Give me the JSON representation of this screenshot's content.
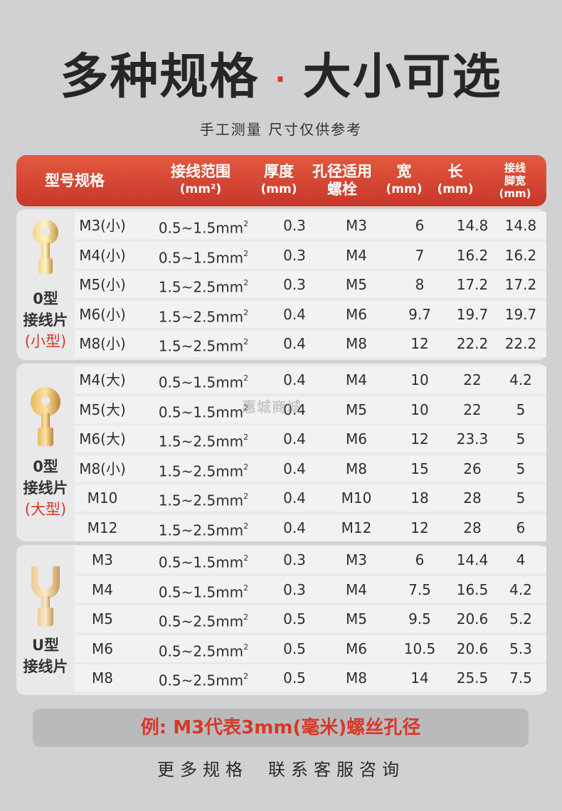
{
  "title": {
    "left": "多种规格",
    "dot": "·",
    "right": "大小可选"
  },
  "subtitle": "手工测量  尺寸仅供参考",
  "header": [
    {
      "l1": "型号规格",
      "l2": ""
    },
    {
      "l1": "接线范围",
      "l2": "(mm²)"
    },
    {
      "l1": "厚度",
      "l2": "(mm)"
    },
    {
      "l1": "孔径适用",
      "l2": "螺栓"
    },
    {
      "l1": "宽",
      "l2": "(mm)"
    },
    {
      "l1": "长",
      "l2": "(mm)"
    },
    {
      "l1": "接线",
      "l2": "脚宽",
      "l3": "(mm)"
    }
  ],
  "groups": [
    {
      "name": "O型\n接线片",
      "name1": "0型",
      "name2": "接线片",
      "sub": "(小型)",
      "icon": "ring-terminal-small-icon",
      "rows": [
        [
          "M3(小)",
          "0.5~1.5mm",
          "0.3",
          "M3",
          "6",
          "14.8",
          "14.8"
        ],
        [
          "M4(小)",
          "0.5~1.5mm",
          "0.3",
          "M4",
          "7",
          "16.2",
          "16.2"
        ],
        [
          "M5(小)",
          "1.5~2.5mm",
          "0.3",
          "M5",
          "8",
          "17.2",
          "17.2"
        ],
        [
          "M6(小)",
          "1.5~2.5mm",
          "0.4",
          "M6",
          "9.7",
          "19.7",
          "19.7"
        ],
        [
          "M8(小)",
          "1.5~2.5mm",
          "0.4",
          "M8",
          "12",
          "22.2",
          "22.2"
        ]
      ]
    },
    {
      "name1": "0型",
      "name2": "接线片",
      "sub": "(大型)",
      "icon": "ring-terminal-large-icon",
      "rows": [
        [
          "M4(大)",
          "0.5~1.5mm",
          "0.4",
          "M4",
          "10",
          "22",
          "4.2"
        ],
        [
          "M5(大)",
          "0.5~1.5mm",
          "0.4",
          "M5",
          "10",
          "22",
          "5"
        ],
        [
          "M6(大)",
          "1.5~2.5mm",
          "0.4",
          "M6",
          "12",
          "23.3",
          "5"
        ],
        [
          "M8(小)",
          "1.5~2.5mm",
          "0.4",
          "M8",
          "15",
          "26",
          "5"
        ],
        [
          "M10",
          "1.5~2.5mm",
          "0.4",
          "M10",
          "18",
          "28",
          "5"
        ],
        [
          "M12",
          "1.5~2.5mm",
          "0.4",
          "M12",
          "12",
          "28",
          "6"
        ]
      ]
    },
    {
      "name1": "U型",
      "name2": "接线片",
      "sub": "",
      "icon": "fork-terminal-icon",
      "rows": [
        [
          "M3",
          "0.5~1.5mm",
          "0.3",
          "M3",
          "6",
          "14.4",
          "4"
        ],
        [
          "M4",
          "0.5~1.5mm",
          "0.3",
          "M4",
          "7.5",
          "16.5",
          "4.2"
        ],
        [
          "M5",
          "0.5~2.5mm",
          "0.5",
          "M5",
          "9.5",
          "20.6",
          "5.2"
        ],
        [
          "M6",
          "0.5~2.5mm",
          "0.5",
          "M6",
          "10.5",
          "20.6",
          "5.3"
        ],
        [
          "M8",
          "0.5~2.5mm",
          "0.5",
          "M8",
          "14",
          "25.5",
          "7.5"
        ]
      ]
    }
  ],
  "watermark": "惠城商城",
  "note": "例: M3代表3mm(毫米)螺丝孔径",
  "footer": {
    "left": "更多规格",
    "right": "联系客服咨询"
  },
  "colors": {
    "accent": "#d8382a",
    "header_top": "#e25a3f",
    "header_bottom": "#c9362a",
    "brass": "#e0b45a"
  }
}
